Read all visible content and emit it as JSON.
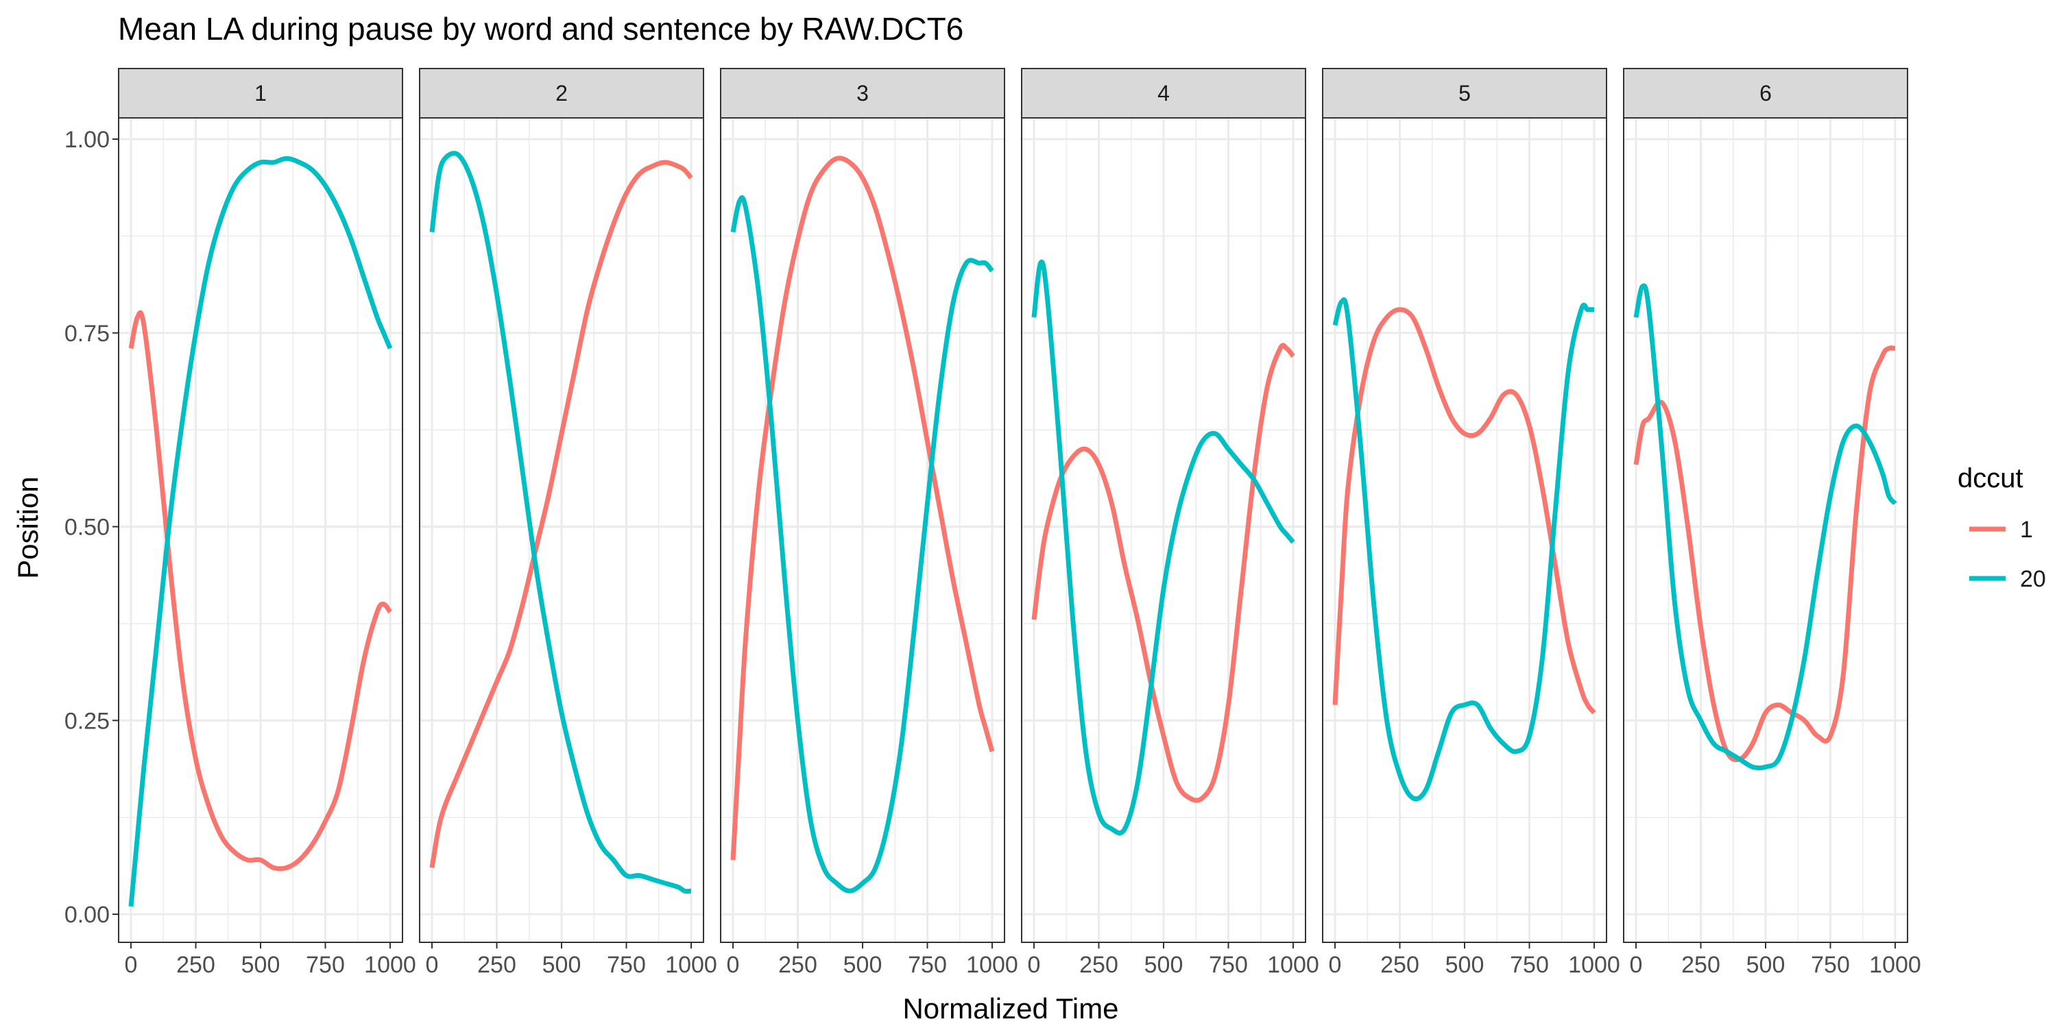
{
  "chart_data": {
    "type": "line",
    "title": "Mean LA during pause by word and sentence by RAW.DCT6",
    "xlabel": "Normalized Time",
    "ylabel": "Position",
    "xlim": [
      0,
      1000
    ],
    "ylim": [
      0,
      1
    ],
    "x_ticks": [
      "0",
      "250",
      "500",
      "750",
      "1000"
    ],
    "y_ticks": [
      "0.00",
      "0.25",
      "0.50",
      "0.75",
      "1.00"
    ],
    "grid": true,
    "legend": {
      "title": "dccut",
      "position": "right",
      "entries": [
        "1",
        "20"
      ]
    },
    "colors": {
      "1": "#F8766D",
      "20": "#00BFC4",
      "strip_bg": "#D9D9D9",
      "grid": "#EBEBEB"
    },
    "x": [
      0,
      25,
      50,
      100,
      150,
      200,
      250,
      300,
      350,
      400,
      450,
      500,
      550,
      600,
      650,
      700,
      750,
      800,
      850,
      900,
      950,
      975,
      1000
    ],
    "panels": [
      {
        "label": "1",
        "series": [
          {
            "name": "1",
            "values": [
              0.73,
              0.77,
              0.76,
              0.62,
              0.45,
              0.3,
              0.2,
              0.14,
              0.1,
              0.08,
              0.07,
              0.07,
              0.06,
              0.06,
              0.07,
              0.09,
              0.12,
              0.16,
              0.24,
              0.33,
              0.39,
              0.4,
              0.39
            ]
          },
          {
            "name": "20",
            "values": [
              0.01,
              0.1,
              0.19,
              0.35,
              0.51,
              0.64,
              0.75,
              0.84,
              0.9,
              0.94,
              0.96,
              0.97,
              0.97,
              0.975,
              0.97,
              0.96,
              0.94,
              0.91,
              0.87,
              0.82,
              0.77,
              0.75,
              0.73
            ]
          }
        ]
      },
      {
        "label": "2",
        "series": [
          {
            "name": "1",
            "values": [
              0.06,
              0.11,
              0.14,
              0.18,
              0.22,
              0.26,
              0.3,
              0.34,
              0.4,
              0.47,
              0.54,
              0.62,
              0.7,
              0.78,
              0.84,
              0.89,
              0.93,
              0.955,
              0.965,
              0.97,
              0.965,
              0.96,
              0.95
            ]
          },
          {
            "name": "20",
            "values": [
              0.88,
              0.95,
              0.975,
              0.98,
              0.95,
              0.89,
              0.8,
              0.69,
              0.57,
              0.45,
              0.35,
              0.26,
              0.19,
              0.13,
              0.09,
              0.07,
              0.05,
              0.05,
              0.045,
              0.04,
              0.035,
              0.03,
              0.03
            ]
          }
        ]
      },
      {
        "label": "3",
        "series": [
          {
            "name": "1",
            "values": [
              0.07,
              0.22,
              0.36,
              0.55,
              0.68,
              0.79,
              0.87,
              0.93,
              0.96,
              0.975,
              0.97,
              0.95,
              0.91,
              0.85,
              0.78,
              0.7,
              0.61,
              0.52,
              0.43,
              0.35,
              0.27,
              0.24,
              0.21
            ]
          },
          {
            "name": "20",
            "values": [
              0.88,
              0.92,
              0.91,
              0.8,
              0.63,
              0.43,
              0.25,
              0.12,
              0.06,
              0.04,
              0.03,
              0.04,
              0.06,
              0.12,
              0.22,
              0.37,
              0.53,
              0.68,
              0.79,
              0.84,
              0.84,
              0.84,
              0.83
            ]
          }
        ]
      },
      {
        "label": "4",
        "series": [
          {
            "name": "1",
            "values": [
              0.38,
              0.45,
              0.5,
              0.56,
              0.59,
              0.6,
              0.58,
              0.53,
              0.45,
              0.38,
              0.3,
              0.23,
              0.17,
              0.15,
              0.15,
              0.18,
              0.27,
              0.42,
              0.57,
              0.68,
              0.73,
              0.73,
              0.72
            ]
          },
          {
            "name": "20",
            "values": [
              0.77,
              0.84,
              0.8,
              0.6,
              0.38,
              0.21,
              0.13,
              0.11,
              0.11,
              0.17,
              0.29,
              0.42,
              0.51,
              0.57,
              0.61,
              0.62,
              0.6,
              0.58,
              0.56,
              0.53,
              0.5,
              0.49,
              0.48
            ]
          }
        ]
      },
      {
        "label": "5",
        "series": [
          {
            "name": "1",
            "values": [
              0.27,
              0.42,
              0.55,
              0.67,
              0.74,
              0.77,
              0.78,
              0.77,
              0.73,
              0.68,
              0.64,
              0.62,
              0.62,
              0.64,
              0.67,
              0.67,
              0.63,
              0.55,
              0.45,
              0.35,
              0.29,
              0.27,
              0.26
            ]
          },
          {
            "name": "20",
            "values": [
              0.76,
              0.79,
              0.77,
              0.6,
              0.4,
              0.25,
              0.18,
              0.15,
              0.16,
              0.21,
              0.26,
              0.27,
              0.27,
              0.24,
              0.22,
              0.21,
              0.23,
              0.33,
              0.52,
              0.7,
              0.78,
              0.78,
              0.78
            ]
          }
        ]
      },
      {
        "label": "6",
        "series": [
          {
            "name": "1",
            "values": [
              0.58,
              0.63,
              0.64,
              0.66,
              0.61,
              0.5,
              0.37,
              0.27,
              0.21,
              0.2,
              0.22,
              0.26,
              0.27,
              0.26,
              0.25,
              0.23,
              0.23,
              0.31,
              0.52,
              0.67,
              0.72,
              0.73,
              0.73
            ]
          },
          {
            "name": "20",
            "values": [
              0.77,
              0.81,
              0.78,
              0.6,
              0.4,
              0.29,
              0.25,
              0.22,
              0.21,
              0.2,
              0.19,
              0.19,
              0.2,
              0.25,
              0.33,
              0.44,
              0.54,
              0.61,
              0.63,
              0.61,
              0.57,
              0.54,
              0.53
            ]
          }
        ]
      }
    ]
  }
}
